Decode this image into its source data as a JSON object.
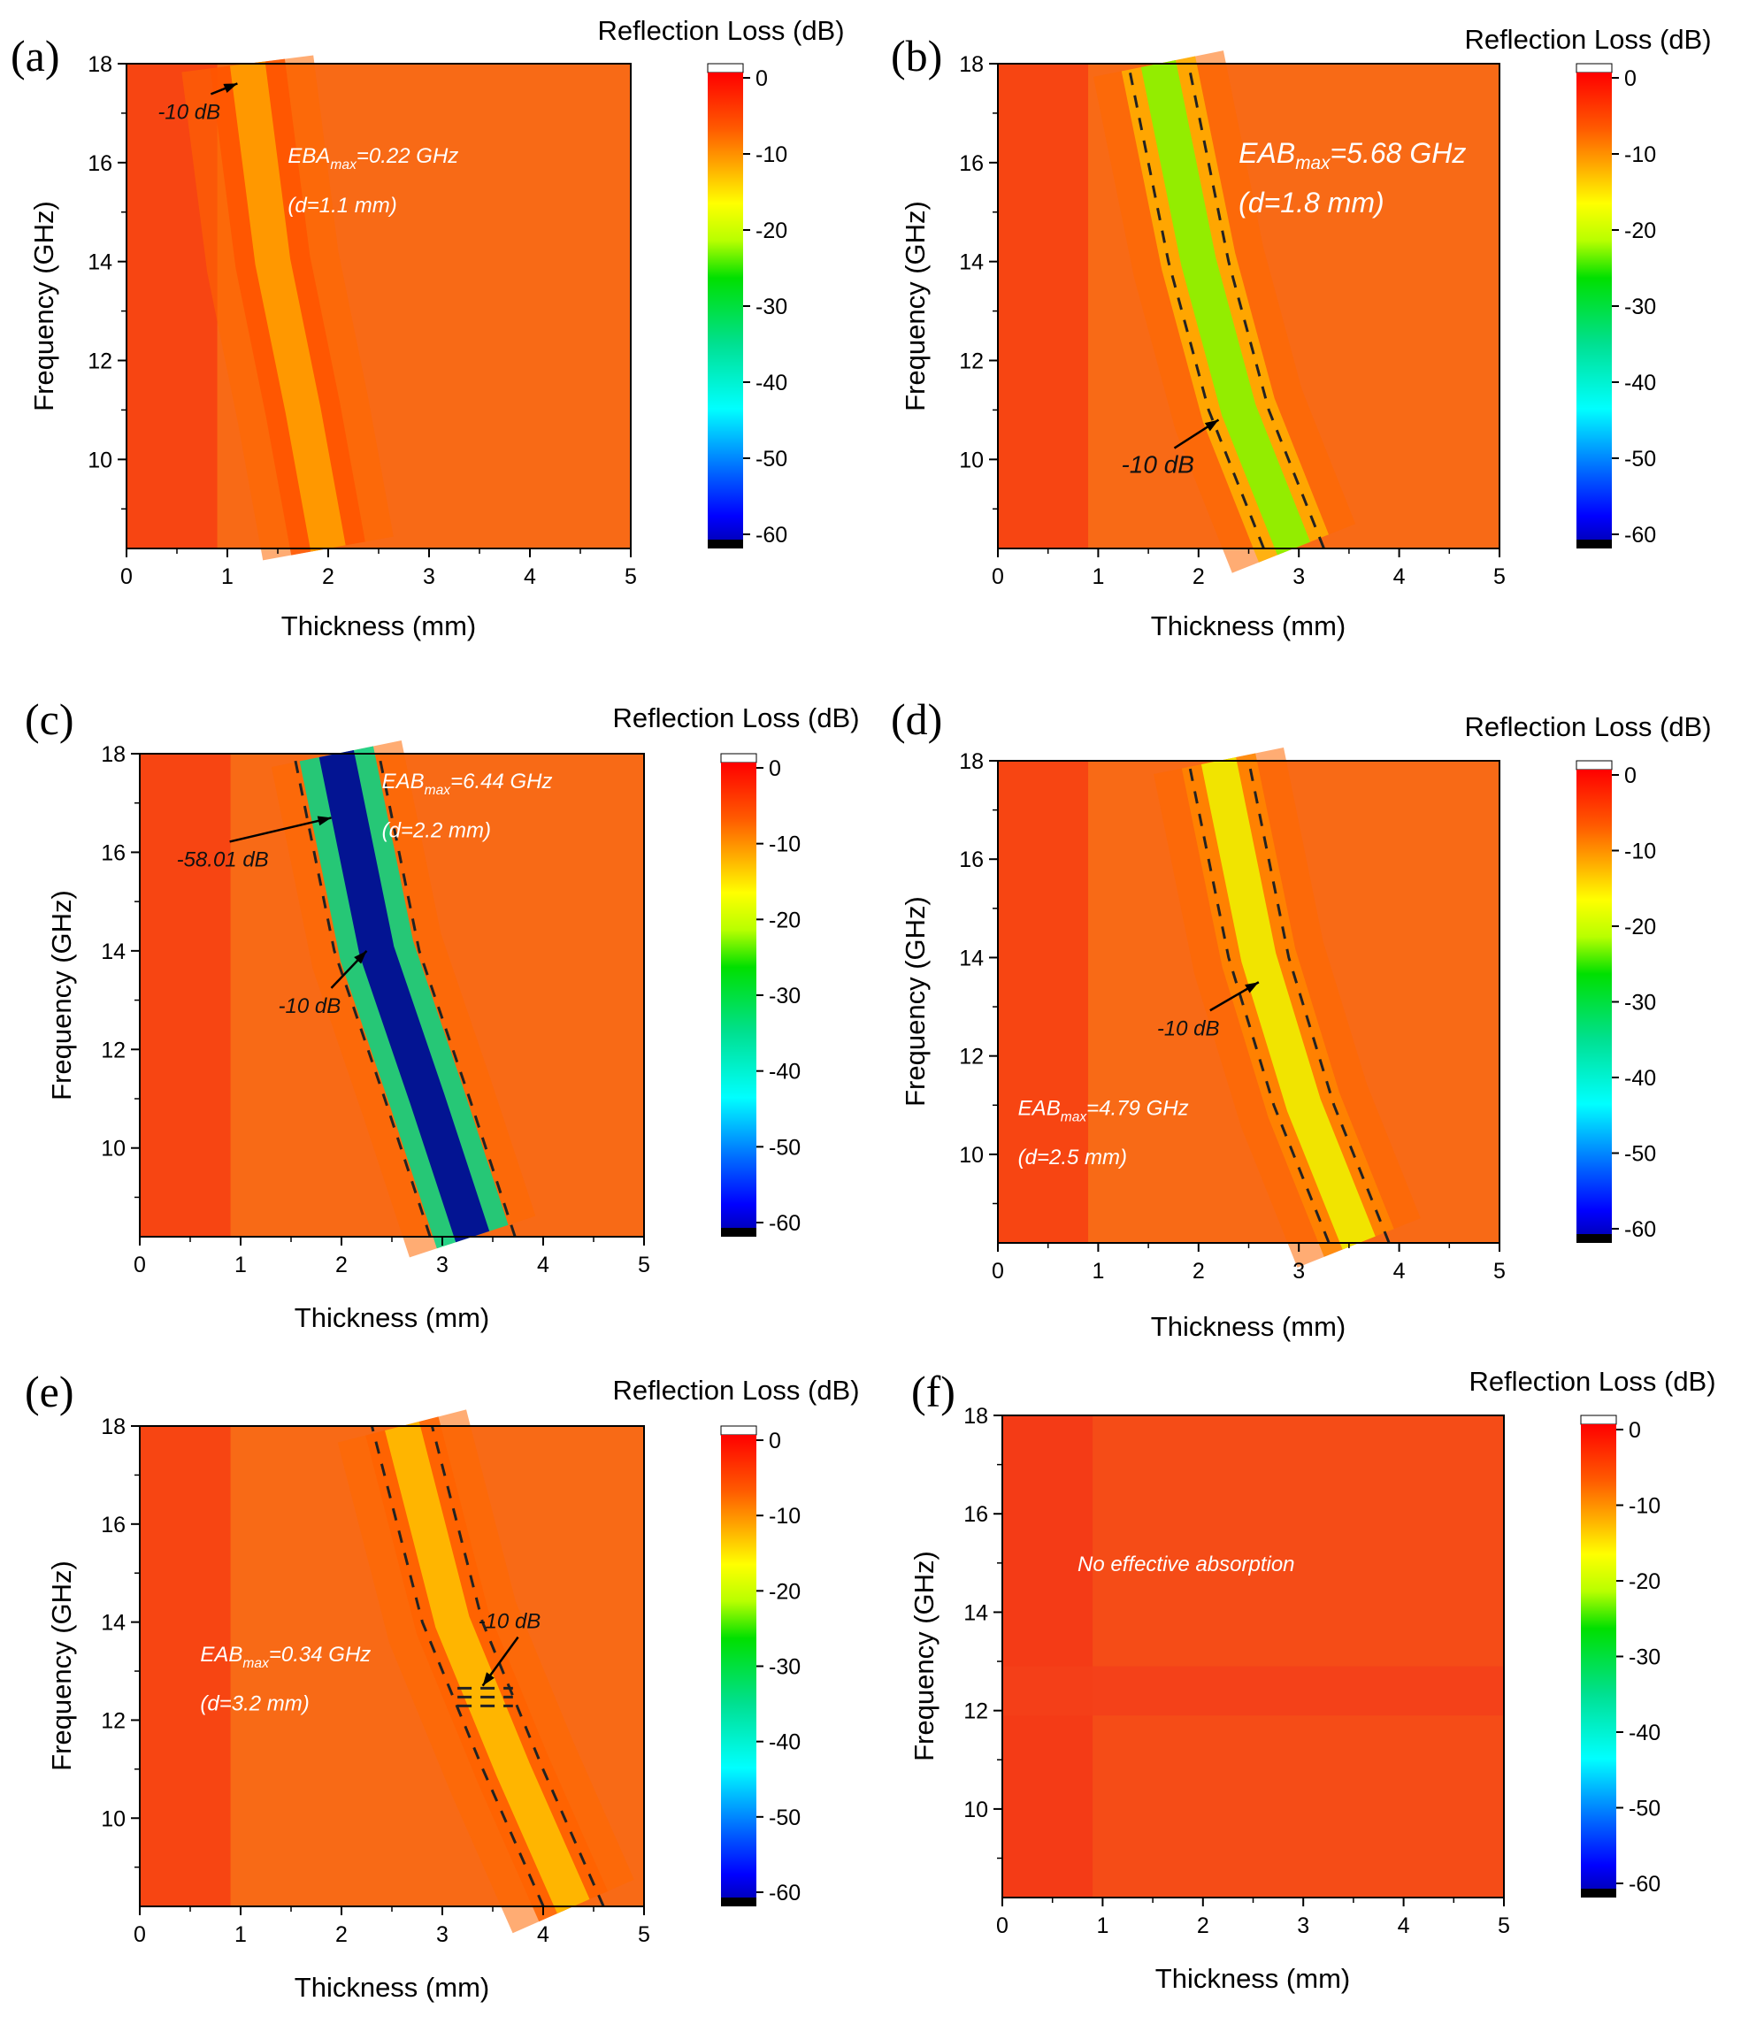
{
  "chart_data": [
    {
      "type": "heatmap",
      "letter": "(a)",
      "xlabel": "Thickness (mm)",
      "ylabel": "Frequency (GHz)",
      "colorbar_label": "Reflection Loss (dB)",
      "xlim": [
        0,
        5
      ],
      "ylim": [
        8.2,
        18
      ],
      "x_ticks": [
        "0",
        "1",
        "2",
        "3",
        "4",
        "5"
      ],
      "y_ticks": [
        "10",
        "12",
        "14",
        "16",
        "18"
      ],
      "colorbar_ticks": [
        "0",
        "-10",
        "-20",
        "-30",
        "-40",
        "-50",
        "-60"
      ],
      "band_centerline": [
        [
          2.0,
          8.2
        ],
        [
          1.75,
          11.0
        ],
        [
          1.45,
          14.0
        ],
        [
          1.2,
          18.0
        ]
      ],
      "band_min_rl_db": -9,
      "annotations": [
        {
          "text": "-10 dB",
          "x": 1.1,
          "y": 17.6
        },
        {
          "text_main": "EBA",
          "text_sub": "max",
          "text_rest": "=0.22 GHz",
          "x": 1.6,
          "y": 16.0
        },
        {
          "text_main": "(d=1.1 mm)",
          "x": 1.6,
          "y": 15.0
        }
      ]
    },
    {
      "type": "heatmap",
      "letter": "(b)",
      "xlabel": "Thickness (mm)",
      "ylabel": "Frequency (GHz)",
      "colorbar_label": "Reflection Loss (dB)",
      "xlim": [
        0,
        5
      ],
      "ylim": [
        8.2,
        18
      ],
      "x_ticks": [
        "0",
        "1",
        "2",
        "3",
        "4",
        "5"
      ],
      "y_ticks": [
        "10",
        "12",
        "14",
        "16",
        "18"
      ],
      "colorbar_ticks": [
        "0",
        "-10",
        "-20",
        "-30",
        "-40",
        "-50",
        "-60"
      ],
      "band_centerline": [
        [
          2.95,
          8.2
        ],
        [
          2.4,
          11.0
        ],
        [
          2.0,
          14.0
        ],
        [
          1.6,
          18.0
        ]
      ],
      "band_min_rl_db": -18,
      "annotations": [
        {
          "text": "-10 dB",
          "x": 2.2,
          "y": 10.8
        },
        {
          "text_main": "EAB",
          "text_sub": "max",
          "text_rest": "=5.68 GHz",
          "x": 2.4,
          "y": 16.0
        },
        {
          "text_main": "(d=1.8 mm)",
          "x": 2.4,
          "y": 15.0
        }
      ]
    },
    {
      "type": "heatmap",
      "letter": "(c)",
      "xlabel": "Thickness (mm)",
      "ylabel": "Frequency (GHz)",
      "colorbar_label": "Reflection Loss (dB)",
      "xlim": [
        0,
        5
      ],
      "ylim": [
        8.2,
        18
      ],
      "x_ticks": [
        "0",
        "1",
        "2",
        "3",
        "4",
        "5"
      ],
      "y_ticks": [
        "10",
        "12",
        "14",
        "16",
        "18"
      ],
      "colorbar_ticks": [
        "0",
        "-10",
        "-20",
        "-30",
        "-40",
        "-50",
        "-60"
      ],
      "band_centerline": [
        [
          3.3,
          8.2
        ],
        [
          2.85,
          11.0
        ],
        [
          2.35,
          14.0
        ],
        [
          1.95,
          18.0
        ]
      ],
      "band_min_rl_db": -58.01,
      "annotations": [
        {
          "text": "-58.01 dB",
          "x": 1.9,
          "y": 16.7
        },
        {
          "text": "-10 dB",
          "x": 2.25,
          "y": 14.0
        },
        {
          "text_main": "EAB",
          "text_sub": "max",
          "text_rest": "=6.44 GHz",
          "x": 2.4,
          "y": 17.3
        },
        {
          "text_main": "(d=2.2 mm)",
          "x": 2.4,
          "y": 16.3
        }
      ]
    },
    {
      "type": "heatmap",
      "letter": "(d)",
      "xlabel": "Thickness (mm)",
      "ylabel": "Frequency (GHz)",
      "colorbar_label": "Reflection Loss (dB)",
      "xlim": [
        0,
        5
      ],
      "ylim": [
        8.2,
        18
      ],
      "x_ticks": [
        "0",
        "1",
        "2",
        "3",
        "4",
        "5"
      ],
      "y_ticks": [
        "10",
        "12",
        "14",
        "16",
        "18"
      ],
      "colorbar_ticks": [
        "0",
        "-10",
        "-20",
        "-30",
        "-40",
        "-50",
        "-60"
      ],
      "band_centerline": [
        [
          3.6,
          8.2
        ],
        [
          3.05,
          11.0
        ],
        [
          2.6,
          14.0
        ],
        [
          2.2,
          18.0
        ]
      ],
      "band_min_rl_db": -14,
      "annotations": [
        {
          "text": "-10 dB",
          "x": 2.6,
          "y": 13.5
        },
        {
          "text_main": "EAB",
          "text_sub": "max",
          "text_rest": "=4.79 GHz",
          "x": 0.2,
          "y": 10.8
        },
        {
          "text_main": "(d=2.5 mm)",
          "x": 0.2,
          "y": 9.8
        }
      ]
    },
    {
      "type": "heatmap",
      "letter": "(e)",
      "xlabel": "Thickness (mm)",
      "ylabel": "Frequency (GHz)",
      "colorbar_label": "Reflection Loss (dB)",
      "xlim": [
        0,
        5
      ],
      "ylim": [
        8.2,
        18
      ],
      "x_ticks": [
        "0",
        "1",
        "2",
        "3",
        "4",
        "5"
      ],
      "y_ticks": [
        "10",
        "12",
        "14",
        "16",
        "18"
      ],
      "colorbar_ticks": [
        "0",
        "-10",
        "-20",
        "-30",
        "-40",
        "-50",
        "-60"
      ],
      "band_centerline": [
        [
          4.3,
          8.2
        ],
        [
          3.7,
          11.0
        ],
        [
          3.1,
          14.0
        ],
        [
          2.6,
          18.0
        ]
      ],
      "band_min_rl_db": -10.5,
      "annotations": [
        {
          "text": "-10 dB",
          "x": 3.4,
          "y": 12.7
        },
        {
          "text_main": "EAB",
          "text_sub": "max",
          "text_rest": "=0.34 GHz",
          "x": 0.6,
          "y": 13.2
        },
        {
          "text_main": "(d=3.2 mm)",
          "x": 0.6,
          "y": 12.2
        }
      ]
    },
    {
      "type": "heatmap",
      "letter": "(f)",
      "xlabel": "Thickness (mm)",
      "ylabel": "Frequency (GHz)",
      "colorbar_label": "Reflection Loss (dB)",
      "xlim": [
        0,
        5
      ],
      "ylim": [
        8.2,
        18
      ],
      "x_ticks": [
        "0",
        "1",
        "2",
        "3",
        "4",
        "5"
      ],
      "y_ticks": [
        "10",
        "12",
        "14",
        "16",
        "18"
      ],
      "colorbar_ticks": [
        "0",
        "-10",
        "-20",
        "-30",
        "-40",
        "-50",
        "-60"
      ],
      "band_centerline": [],
      "band_min_rl_db": -3,
      "annotations": [
        {
          "text": "No effective absorption",
          "x": 0.75,
          "y": 15.0
        }
      ]
    }
  ],
  "colormap": [
    "#000000",
    "#0000ff",
    "#00ffff",
    "#00e000",
    "#ffff00",
    "#ff8800",
    "#ff0000",
    "#ffffff"
  ]
}
